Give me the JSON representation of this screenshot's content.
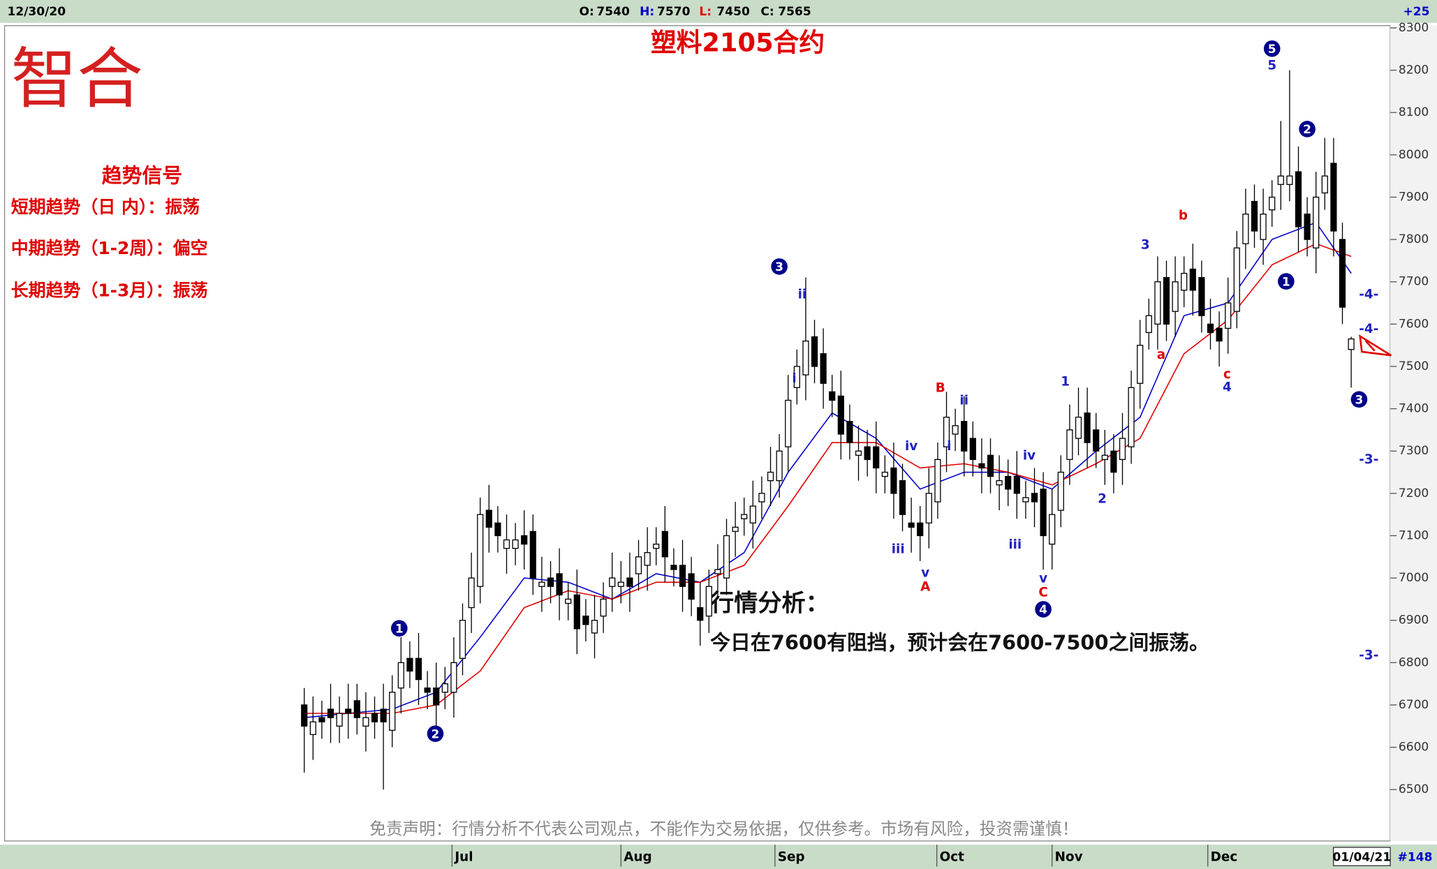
{
  "header": {
    "date": "12/30/20",
    "labels": [
      "O:",
      "H:",
      "L:",
      "C:"
    ],
    "change": "+25"
  },
  "logo": "智合",
  "signals": {
    "title": "趋势信号",
    "items": [
      "短期趋势（日 内）：振荡",
      "中期趋势（1-2周）：偏空",
      "长期趋势（1-3月）：振荡"
    ]
  },
  "analysis": {
    "title": "行情分析：",
    "text": "今日在7600有阻挡，预计会在7600-7500之间振荡。"
  },
  "disclaimer": "免责声明：行情分析不代表公司观点，不能作为交易依据，仅供参考。市场有风险，投资需谨慎！",
  "footer": {
    "date": "01/04/21",
    "count": "#148"
  },
  "chart_data": {
    "type": "candlestick",
    "title": "塑料2105合约",
    "up_color": "#ffffff",
    "down_color": "#000000",
    "ohlc": [
      [
        6700,
        6740,
        6540,
        6650
      ],
      [
        6630,
        6720,
        6570,
        6660
      ],
      [
        6670,
        6710,
        6620,
        6660
      ],
      [
        6690,
        6750,
        6610,
        6670
      ],
      [
        6650,
        6720,
        6610,
        6680
      ],
      [
        6690,
        6750,
        6620,
        6680
      ],
      [
        6710,
        6750,
        6630,
        6670
      ],
      [
        6650,
        6730,
        6590,
        6670
      ],
      [
        6680,
        6720,
        6620,
        6660
      ],
      [
        6690,
        6750,
        6500,
        6660
      ],
      [
        6640,
        6770,
        6600,
        6730
      ],
      [
        6740,
        6860,
        6680,
        6800
      ],
      [
        6810,
        6850,
        6740,
        6780
      ],
      [
        6810,
        6870,
        6700,
        6760
      ],
      [
        6740,
        6780,
        6690,
        6730
      ],
      [
        6740,
        6800,
        6640,
        6700
      ],
      [
        6730,
        6790,
        6690,
        6750
      ],
      [
        6730,
        6860,
        6670,
        6800
      ],
      [
        6810,
        6940,
        6770,
        6900
      ],
      [
        6930,
        7060,
        6870,
        7000
      ],
      [
        6980,
        7190,
        6940,
        7150
      ],
      [
        7160,
        7220,
        7060,
        7120
      ],
      [
        7130,
        7170,
        7060,
        7100
      ],
      [
        7070,
        7150,
        7010,
        7090
      ],
      [
        7070,
        7130,
        7030,
        7090
      ],
      [
        7100,
        7160,
        7020,
        7080
      ],
      [
        7110,
        7150,
        6960,
        7000
      ],
      [
        6980,
        7050,
        6920,
        6990
      ],
      [
        7000,
        7040,
        6940,
        6980
      ],
      [
        7010,
        7070,
        6900,
        6960
      ],
      [
        6940,
        6990,
        6900,
        6950
      ],
      [
        6960,
        7020,
        6820,
        6880
      ],
      [
        6910,
        6950,
        6850,
        6890
      ],
      [
        6870,
        6960,
        6810,
        6900
      ],
      [
        6910,
        6990,
        6870,
        6950
      ],
      [
        6980,
        7060,
        6920,
        7000
      ],
      [
        6980,
        7040,
        6940,
        6990
      ],
      [
        7000,
        7060,
        6920,
        6980
      ],
      [
        7010,
        7090,
        6970,
        7050
      ],
      [
        7030,
        7120,
        6970,
        7060
      ],
      [
        7070,
        7120,
        7030,
        7080
      ],
      [
        7110,
        7170,
        6990,
        7050
      ],
      [
        7030,
        7070,
        6980,
        7020
      ],
      [
        7030,
        7090,
        6920,
        6980
      ],
      [
        7010,
        7050,
        6910,
        6950
      ],
      [
        6930,
        6990,
        6840,
        6900
      ],
      [
        6910,
        7020,
        6870,
        6980
      ],
      [
        7010,
        7080,
        6950,
        7020
      ],
      [
        7000,
        7140,
        6960,
        7100
      ],
      [
        7110,
        7180,
        7050,
        7120
      ],
      [
        7140,
        7190,
        7100,
        7150
      ],
      [
        7130,
        7230,
        7070,
        7170
      ],
      [
        7180,
        7240,
        7140,
        7200
      ],
      [
        7230,
        7310,
        7170,
        7250
      ],
      [
        7230,
        7340,
        7190,
        7300
      ],
      [
        7310,
        7480,
        7250,
        7420
      ],
      [
        7450,
        7540,
        7410,
        7500
      ],
      [
        7480,
        7710,
        7420,
        7560
      ],
      [
        7570,
        7610,
        7460,
        7500
      ],
      [
        7530,
        7590,
        7400,
        7460
      ],
      [
        7440,
        7480,
        7380,
        7420
      ],
      [
        7430,
        7490,
        7280,
        7340
      ],
      [
        7370,
        7410,
        7280,
        7320
      ],
      [
        7290,
        7360,
        7230,
        7300
      ],
      [
        7310,
        7350,
        7240,
        7280
      ],
      [
        7310,
        7370,
        7200,
        7260
      ],
      [
        7240,
        7290,
        7200,
        7250
      ],
      [
        7260,
        7320,
        7140,
        7200
      ],
      [
        7230,
        7270,
        7110,
        7150
      ],
      [
        7130,
        7190,
        7060,
        7120
      ],
      [
        7130,
        7170,
        7040,
        7100
      ],
      [
        7130,
        7260,
        7070,
        7200
      ],
      [
        7180,
        7320,
        7140,
        7280
      ],
      [
        7310,
        7440,
        7250,
        7380
      ],
      [
        7340,
        7400,
        7300,
        7360
      ],
      [
        7370,
        7430,
        7240,
        7300
      ],
      [
        7330,
        7370,
        7240,
        7280
      ],
      [
        7270,
        7330,
        7200,
        7260
      ],
      [
        7290,
        7330,
        7200,
        7240
      ],
      [
        7220,
        7290,
        7160,
        7230
      ],
      [
        7240,
        7280,
        7170,
        7210
      ],
      [
        7240,
        7300,
        7140,
        7200
      ],
      [
        7180,
        7230,
        7140,
        7190
      ],
      [
        7200,
        7260,
        7120,
        7180
      ],
      [
        7210,
        7250,
        7020,
        7100
      ],
      [
        7080,
        7210,
        7020,
        7150
      ],
      [
        7160,
        7290,
        7120,
        7250
      ],
      [
        7280,
        7410,
        7220,
        7350
      ],
      [
        7330,
        7450,
        7290,
        7380
      ],
      [
        7390,
        7450,
        7260,
        7320
      ],
      [
        7350,
        7390,
        7260,
        7300
      ],
      [
        7280,
        7350,
        7220,
        7290
      ],
      [
        7300,
        7340,
        7200,
        7250
      ],
      [
        7280,
        7390,
        7220,
        7330
      ],
      [
        7310,
        7490,
        7270,
        7450
      ],
      [
        7460,
        7610,
        7400,
        7550
      ],
      [
        7580,
        7660,
        7540,
        7620
      ],
      [
        7600,
        7760,
        7540,
        7700
      ],
      [
        7710,
        7750,
        7560,
        7600
      ],
      [
        7630,
        7760,
        7570,
        7700
      ],
      [
        7680,
        7760,
        7640,
        7720
      ],
      [
        7730,
        7790,
        7620,
        7680
      ],
      [
        7710,
        7750,
        7580,
        7620
      ],
      [
        7600,
        7660,
        7540,
        7580
      ],
      [
        7590,
        7630,
        7500,
        7560
      ],
      [
        7590,
        7710,
        7530,
        7650
      ],
      [
        7630,
        7820,
        7590,
        7780
      ],
      [
        7790,
        7920,
        7730,
        7860
      ],
      [
        7890,
        7930,
        7780,
        7820
      ],
      [
        7800,
        7920,
        7740,
        7860
      ],
      [
        7870,
        7940,
        7830,
        7900
      ],
      [
        7930,
        8080,
        7870,
        7950
      ],
      [
        7930,
        8200,
        7890,
        7950
      ],
      [
        7960,
        8020,
        7770,
        7830
      ],
      [
        7860,
        7900,
        7760,
        7800
      ],
      [
        7780,
        7960,
        7720,
        7900
      ],
      [
        7910,
        8040,
        7870,
        7950
      ],
      [
        7980,
        8040,
        7760,
        7820
      ],
      [
        7800,
        7840,
        7600,
        7640
      ],
      [
        7540,
        7570,
        7450,
        7565
      ]
    ],
    "ma": [
      {
        "color": "#0000cc",
        "x": [
          0,
          5,
          10,
          15,
          20,
          25,
          30,
          35,
          40,
          45,
          50,
          55,
          60,
          65,
          70,
          75,
          80,
          85,
          90,
          95,
          100,
          105,
          110,
          115,
          119
        ],
        "values": [
          6670,
          6680,
          6690,
          6730,
          6860,
          7000,
          6990,
          6950,
          7010,
          6990,
          7060,
          7250,
          7390,
          7330,
          7210,
          7250,
          7250,
          7210,
          7300,
          7380,
          7620,
          7650,
          7800,
          7840,
          7720
        ]
      },
      {
        "color": "#e00000",
        "x": [
          0,
          5,
          10,
          15,
          20,
          25,
          30,
          35,
          40,
          45,
          50,
          55,
          60,
          65,
          70,
          75,
          80,
          85,
          90,
          95,
          100,
          105,
          110,
          115,
          119
        ],
        "values": [
          6680,
          6680,
          6680,
          6700,
          6780,
          6930,
          6970,
          6950,
          6990,
          6990,
          7030,
          7170,
          7320,
          7320,
          7260,
          7270,
          7250,
          7220,
          7270,
          7330,
          7530,
          7610,
          7740,
          7790,
          7760
        ]
      }
    ],
    "xlim": [
      -34.06,
      123.44
    ],
    "xticks": [
      {
        "value": 16.8,
        "label": "Jul"
      },
      {
        "value": 36,
        "label": "Aug"
      },
      {
        "value": 53.5,
        "label": "Sep"
      },
      {
        "value": 71.9,
        "label": "Oct"
      },
      {
        "value": 85,
        "label": "Nov"
      },
      {
        "value": 102.7,
        "label": "Dec"
      }
    ],
    "ylim": [
      6385,
      8301
    ],
    "yticks": [
      6500,
      6600,
      6700,
      6800,
      6900,
      7000,
      7100,
      7200,
      7300,
      7400,
      7500,
      7600,
      7700,
      7800,
      7900,
      8000,
      8100,
      8200,
      8300
    ],
    "annotations": [
      {
        "text": "1",
        "color": "#00008b",
        "circle": true
      },
      {
        "text": "2",
        "color": "#00008b",
        "circle": true
      },
      {
        "text": "3",
        "color": "#00008b",
        "circle": true
      },
      {
        "text": "4",
        "color": "#00008b",
        "circle": true
      },
      {
        "text": "5",
        "color": "#00008b",
        "circle": true
      },
      {
        "text": "2",
        "color": "#00008b",
        "circle": true
      },
      {
        "text": "1",
        "color": "#00008b",
        "circle": true
      },
      {
        "text": "3",
        "color": "#00008b",
        "circle": true
      },
      {
        "text": "5",
        "color": "#2020c0"
      },
      {
        "text": "ii",
        "color": "#2020c0"
      },
      {
        "text": "i",
        "color": "#2020c0"
      },
      {
        "text": "iii",
        "color": "#2020c0"
      },
      {
        "text": "v",
        "color": "#2020c0"
      },
      {
        "text": "iv",
        "color": "#2020c0"
      },
      {
        "text": "i",
        "color": "#2020c0"
      },
      {
        "text": "ii",
        "color": "#2020c0"
      },
      {
        "text": "iv",
        "color": "#2020c0"
      },
      {
        "text": "iii",
        "color": "#2020c0"
      },
      {
        "text": "v",
        "color": "#2020c0"
      },
      {
        "text": "1",
        "color": "#2020c0"
      },
      {
        "text": "2",
        "color": "#2020c0"
      },
      {
        "text": "3",
        "color": "#2020c0"
      },
      {
        "text": "4",
        "color": "#2020c0"
      },
      {
        "text": "B",
        "color": "#e00000"
      },
      {
        "text": "A",
        "color": "#e00000"
      },
      {
        "text": "C",
        "color": "#e00000"
      },
      {
        "text": "b",
        "color": "#e00000"
      },
      {
        "text": "a",
        "color": "#e00000"
      },
      {
        "text": "c",
        "color": "#e00000"
      },
      {
        "text": "-4-",
        "color": "#2020c0"
      },
      {
        "text": "-4-",
        "color": "#2020c0"
      },
      {
        "text": "-3-",
        "color": "#2020c0"
      },
      {
        "text": "-3-",
        "color": "#2020c0"
      }
    ]
  }
}
